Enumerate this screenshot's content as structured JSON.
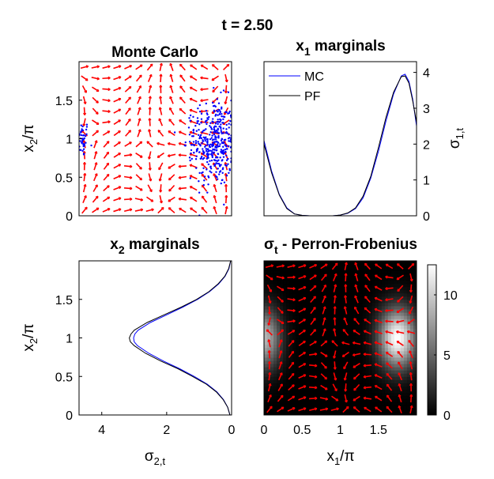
{
  "figure": {
    "suptitle": "t = 2.50"
  },
  "chart_data": [
    {
      "type": "scatter",
      "title": "Monte Carlo",
      "xlim": [
        0,
        2
      ],
      "ylim": [
        0,
        2
      ],
      "yticks": [
        0,
        0.5,
        1,
        1.5
      ],
      "ytick_labels": [
        "0",
        "0.5",
        "1",
        "1.5"
      ],
      "ylabel": "x_2/π",
      "overlay": "quiver",
      "point_color": "#0000ff",
      "arrow_color": "#ff0000",
      "particle_clusters": [
        {
          "center_x": 0.05,
          "center_y": 1.0,
          "spread_x": 0.04,
          "spread_y": 0.12,
          "count": 40
        },
        {
          "center_x": 1.78,
          "center_y": 0.95,
          "spread_x": 0.13,
          "spread_y": 0.28,
          "count": 360
        },
        {
          "center_x": 1.5,
          "center_y": 1.0,
          "spread_x": 0.05,
          "spread_y": 0.22,
          "count": 30
        }
      ]
    },
    {
      "type": "line",
      "title": "x_1 marginals",
      "xlim": [
        0,
        2
      ],
      "ylim": [
        0,
        4.3
      ],
      "yticks": [
        0,
        1,
        2,
        3,
        4
      ],
      "ytick_labels": [
        "0",
        "1",
        "2",
        "3",
        "4"
      ],
      "y_axis_side": "right",
      "ylabel": "σ_1,t",
      "legend": {
        "location": "top-left",
        "entries": [
          "MC",
          "PF"
        ]
      },
      "series": [
        {
          "name": "MC",
          "color": "#0000ff",
          "x": [
            0,
            0.1,
            0.2,
            0.3,
            0.4,
            0.5,
            0.6,
            0.7,
            0.8,
            0.9,
            1.0,
            1.1,
            1.2,
            1.3,
            1.4,
            1.5,
            1.6,
            1.7,
            1.8,
            1.85,
            1.9,
            1.95,
            2.0
          ],
          "y": [
            2.1,
            1.25,
            0.6,
            0.22,
            0.05,
            0.01,
            0.0,
            0.0,
            0.0,
            0.0,
            0.02,
            0.07,
            0.2,
            0.5,
            1.05,
            1.8,
            2.65,
            3.4,
            3.9,
            3.95,
            3.75,
            3.25,
            2.5
          ]
        },
        {
          "name": "PF",
          "color": "#000000",
          "x": [
            0,
            0.1,
            0.2,
            0.3,
            0.4,
            0.5,
            0.6,
            0.7,
            0.8,
            0.9,
            1.0,
            1.1,
            1.2,
            1.3,
            1.4,
            1.5,
            1.6,
            1.7,
            1.8,
            1.85,
            1.9,
            1.95,
            2.0
          ],
          "y": [
            2.0,
            1.2,
            0.58,
            0.2,
            0.05,
            0.01,
            0.0,
            0.0,
            0.0,
            0.0,
            0.02,
            0.08,
            0.22,
            0.55,
            1.1,
            1.9,
            2.75,
            3.45,
            3.88,
            3.9,
            3.7,
            3.2,
            2.6
          ]
        }
      ]
    },
    {
      "type": "line",
      "title": "x_2 marginals",
      "orientation": "horizontal",
      "xlim": [
        4.7,
        0
      ],
      "ylim": [
        0,
        2
      ],
      "xticks": [
        4,
        2,
        0
      ],
      "xtick_labels": [
        "4",
        "2",
        "0"
      ],
      "yticks": [
        0,
        0.5,
        1,
        1.5
      ],
      "ytick_labels": [
        "0",
        "0.5",
        "1",
        "1.5"
      ],
      "xlabel": "σ_2,t",
      "ylabel": "x_2/π",
      "series": [
        {
          "name": "MC",
          "color": "#0000ff",
          "y": [
            0,
            0.1,
            0.2,
            0.3,
            0.4,
            0.5,
            0.6,
            0.7,
            0.8,
            0.9,
            0.95,
            1.0,
            1.05,
            1.1,
            1.2,
            1.3,
            1.4,
            1.5,
            1.6,
            1.7,
            1.8,
            1.9,
            2.0
          ],
          "value": [
            0.05,
            0.12,
            0.25,
            0.45,
            0.75,
            1.15,
            1.6,
            2.1,
            2.55,
            2.9,
            3.0,
            3.02,
            2.98,
            2.88,
            2.5,
            2.0,
            1.5,
            1.05,
            0.68,
            0.4,
            0.2,
            0.08,
            0.03
          ]
        },
        {
          "name": "PF",
          "color": "#000000",
          "y": [
            0,
            0.1,
            0.2,
            0.3,
            0.4,
            0.5,
            0.6,
            0.7,
            0.8,
            0.9,
            0.95,
            1.0,
            1.05,
            1.1,
            1.2,
            1.3,
            1.4,
            1.5,
            1.6,
            1.7,
            1.8,
            1.9,
            2.0
          ],
          "value": [
            0.05,
            0.12,
            0.26,
            0.47,
            0.78,
            1.2,
            1.65,
            2.18,
            2.65,
            3.0,
            3.12,
            3.15,
            3.1,
            3.0,
            2.6,
            2.08,
            1.55,
            1.08,
            0.7,
            0.42,
            0.21,
            0.09,
            0.03
          ]
        }
      ]
    },
    {
      "type": "heatmap",
      "title": "σ_t - Perron-Frobenius",
      "xlim": [
        0,
        2
      ],
      "ylim": [
        0,
        2
      ],
      "xticks": [
        0,
        0.5,
        1,
        1.5
      ],
      "xtick_labels": [
        "0",
        "0.5",
        "1",
        "1.5"
      ],
      "xlabel": "x_1/π",
      "overlay": "quiver",
      "arrow_color": "#ff0000",
      "colormap": "gray",
      "colorbar": {
        "min": 0,
        "max": 12.5,
        "ticks": [
          0,
          5,
          10
        ],
        "tick_labels": [
          "0",
          "5",
          "10"
        ]
      },
      "peaks": [
        {
          "center_x": 1.75,
          "center_y": 1.0,
          "sigma_x": 0.17,
          "sigma_y": 0.27,
          "amplitude": 12.5
        },
        {
          "center_x": 0.0,
          "center_y": 1.0,
          "sigma_x": 0.15,
          "sigma_y": 0.27,
          "amplitude": 9.0
        }
      ]
    }
  ]
}
